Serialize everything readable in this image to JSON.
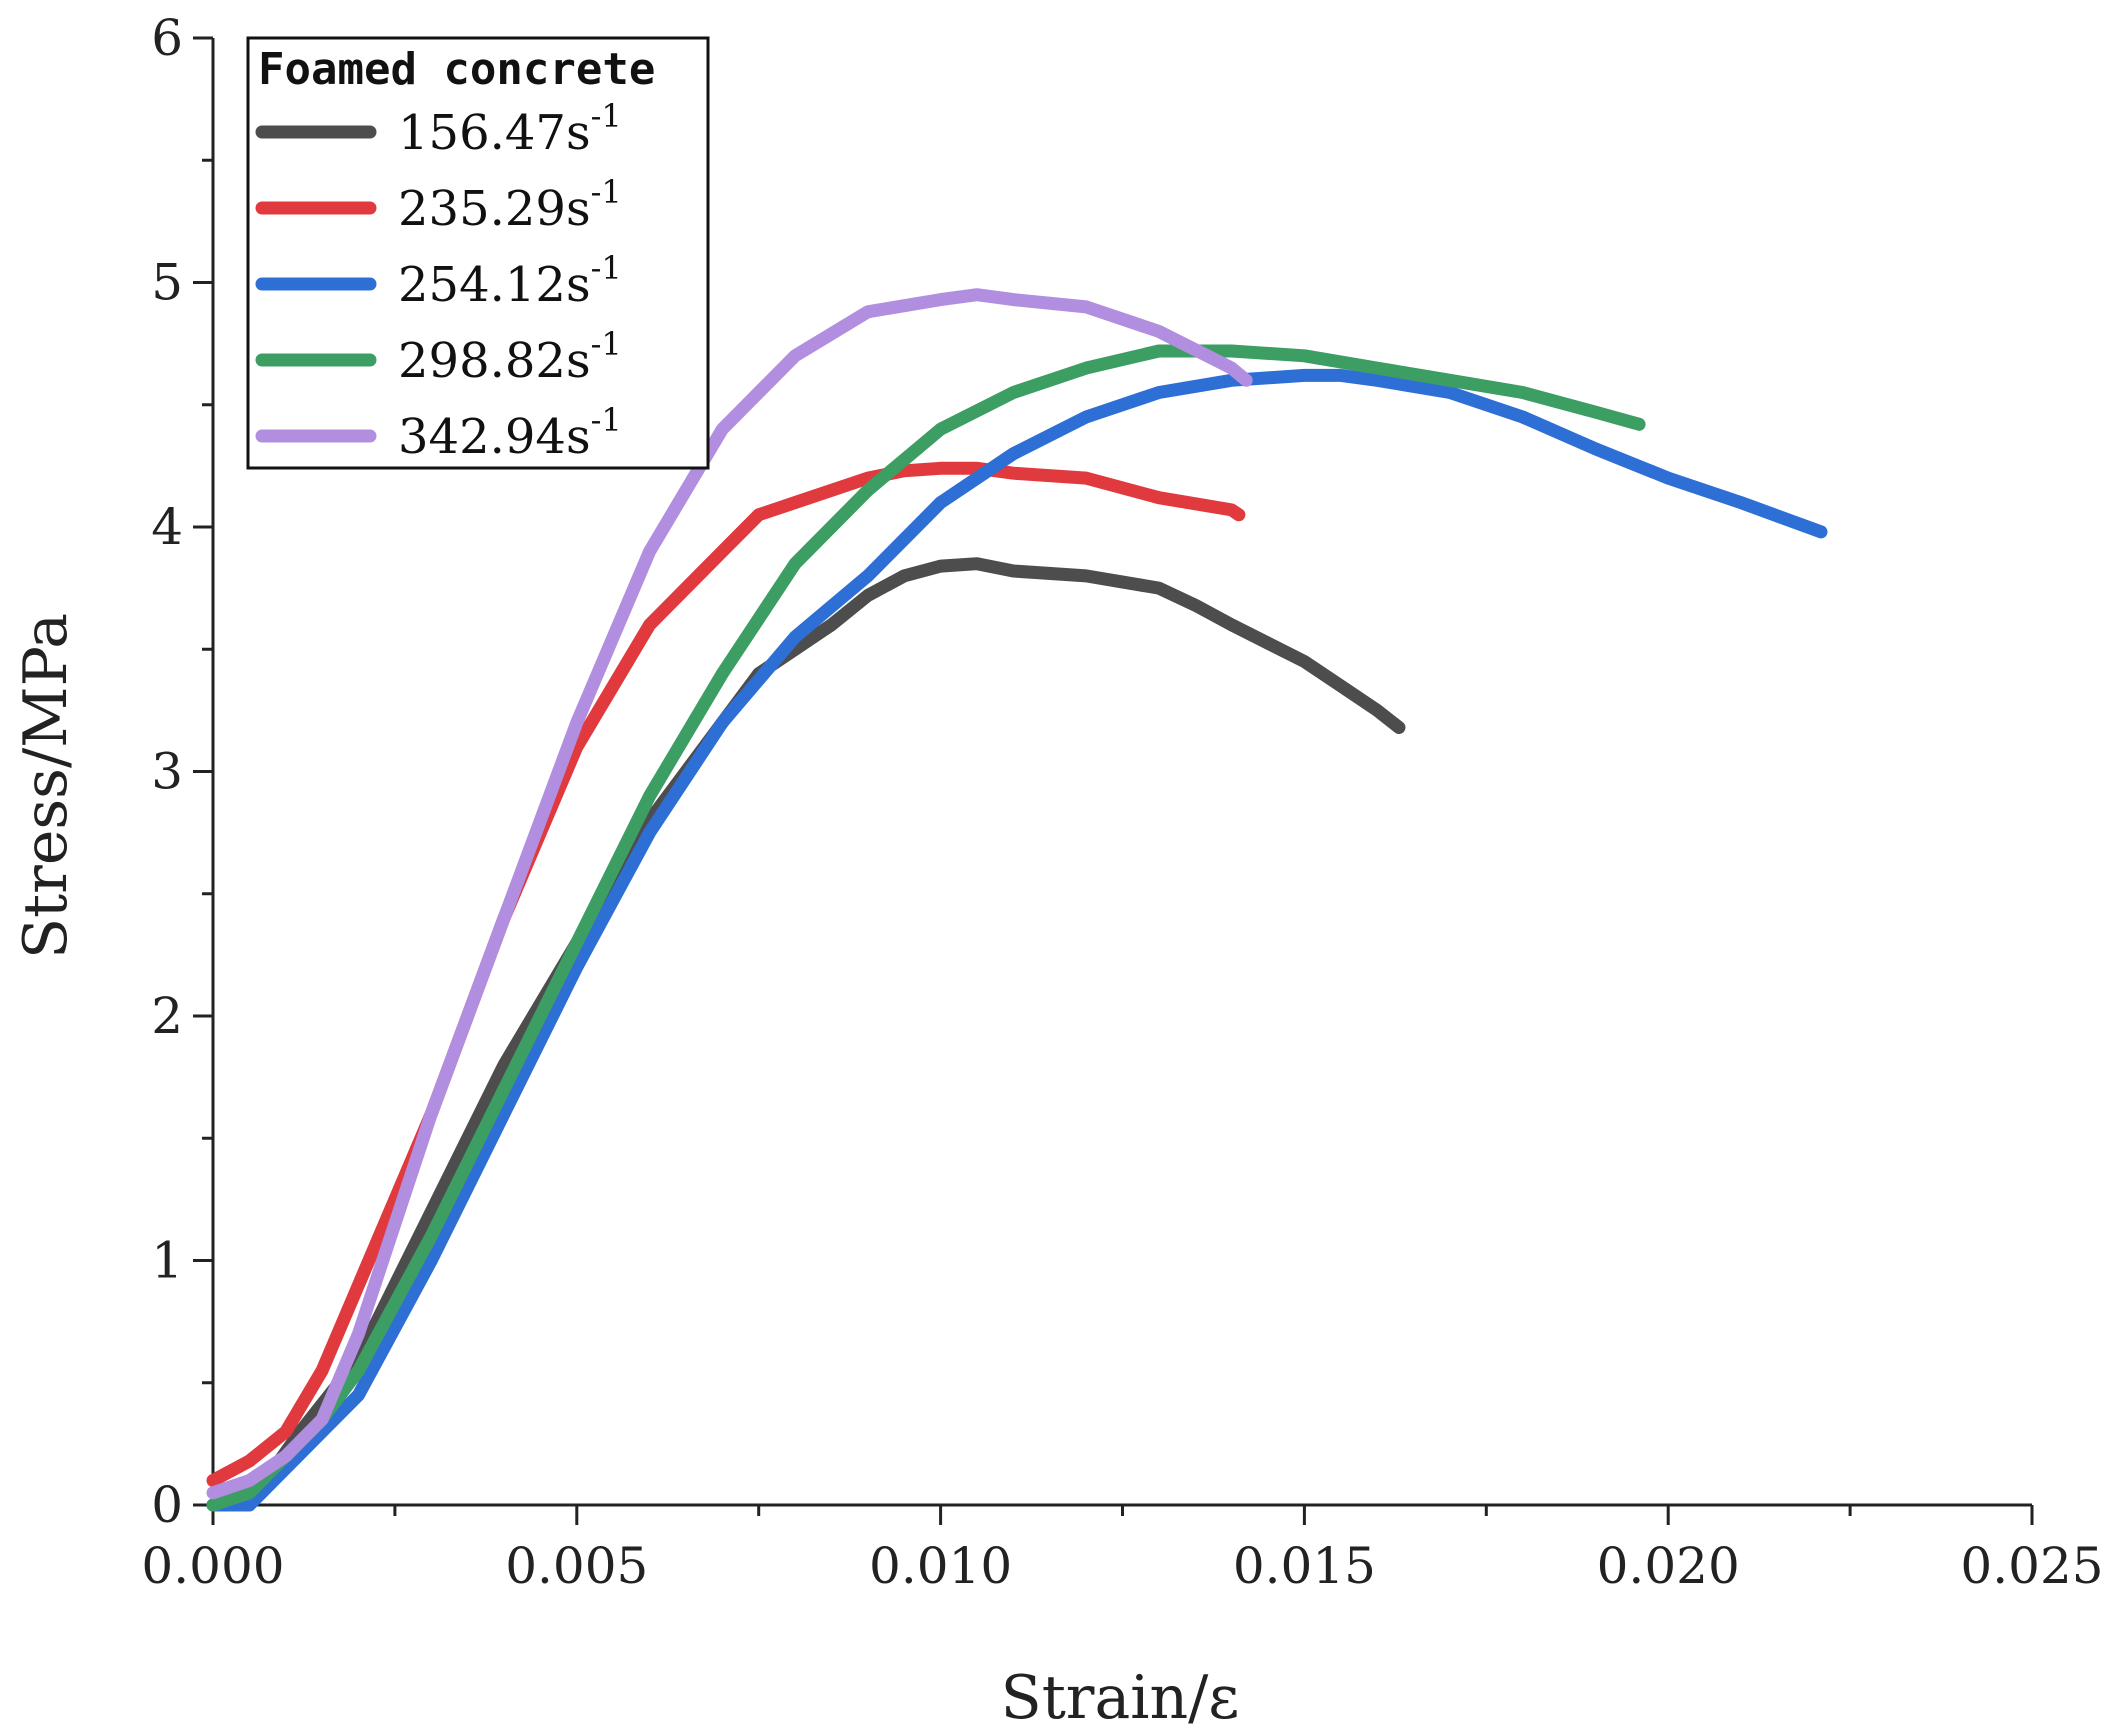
{
  "chart_data": {
    "type": "line",
    "xlabel": "Strain/ε",
    "ylabel": "Stress/MPa",
    "xlim": [
      0,
      0.025
    ],
    "ylim": [
      0,
      6
    ],
    "xticks": [
      "0.000",
      "0.005",
      "0.010",
      "0.015",
      "0.020",
      "0.025"
    ],
    "yticks": [
      "0",
      "1",
      "2",
      "3",
      "4",
      "5",
      "6"
    ],
    "grid": false,
    "legend": {
      "title": "Foamed concrete",
      "position": "top-left"
    },
    "series": [
      {
        "name": "156.47s-1",
        "label_main": "156.47s",
        "label_sup": "-1",
        "color": "#4d4d4d",
        "x": [
          0.0,
          0.0006,
          0.0012,
          0.002,
          0.003,
          0.004,
          0.005,
          0.006,
          0.007,
          0.0075,
          0.008,
          0.0085,
          0.009,
          0.0095,
          0.01,
          0.0105,
          0.011,
          0.012,
          0.013,
          0.0135,
          0.014,
          0.015,
          0.0155,
          0.016,
          0.0163
        ],
        "y": [
          0.0,
          0.05,
          0.3,
          0.6,
          1.2,
          1.8,
          2.3,
          2.8,
          3.2,
          3.4,
          3.5,
          3.6,
          3.72,
          3.8,
          3.84,
          3.85,
          3.82,
          3.8,
          3.75,
          3.68,
          3.6,
          3.45,
          3.35,
          3.25,
          3.18
        ]
      },
      {
        "name": "235.29s-1",
        "label_main": "235.29s",
        "label_sup": "-1",
        "color": "#e0393e",
        "x": [
          0.0,
          0.0005,
          0.001,
          0.0015,
          0.002,
          0.003,
          0.004,
          0.005,
          0.006,
          0.007,
          0.0075,
          0.008,
          0.009,
          0.0095,
          0.01,
          0.0105,
          0.011,
          0.012,
          0.013,
          0.014,
          0.0141
        ],
        "y": [
          0.1,
          0.18,
          0.3,
          0.55,
          0.9,
          1.6,
          2.4,
          3.1,
          3.6,
          3.9,
          4.05,
          4.1,
          4.2,
          4.23,
          4.24,
          4.24,
          4.22,
          4.2,
          4.12,
          4.07,
          4.05
        ]
      },
      {
        "name": "254.12s-1",
        "label_main": "254.12s",
        "label_sup": "-1",
        "color": "#2e6fd6",
        "x": [
          0.0,
          0.0005,
          0.001,
          0.0015,
          0.002,
          0.003,
          0.004,
          0.005,
          0.006,
          0.007,
          0.008,
          0.009,
          0.01,
          0.011,
          0.012,
          0.013,
          0.014,
          0.015,
          0.0155,
          0.016,
          0.017,
          0.018,
          0.019,
          0.02,
          0.021,
          0.0221
        ],
        "y": [
          0.0,
          0.0,
          0.15,
          0.3,
          0.45,
          1.0,
          1.6,
          2.2,
          2.75,
          3.2,
          3.55,
          3.8,
          4.1,
          4.3,
          4.45,
          4.55,
          4.6,
          4.62,
          4.62,
          4.6,
          4.55,
          4.45,
          4.32,
          4.2,
          4.1,
          3.98
        ]
      },
      {
        "name": "298.82s-1",
        "label_main": "298.82s",
        "label_sup": "-1",
        "color": "#3c9e63",
        "x": [
          0.0,
          0.0005,
          0.001,
          0.0015,
          0.002,
          0.003,
          0.004,
          0.005,
          0.006,
          0.007,
          0.008,
          0.009,
          0.01,
          0.011,
          0.012,
          0.013,
          0.014,
          0.015,
          0.016,
          0.017,
          0.018,
          0.019,
          0.0196
        ],
        "y": [
          0.0,
          0.05,
          0.2,
          0.35,
          0.55,
          1.1,
          1.7,
          2.3,
          2.9,
          3.4,
          3.85,
          4.15,
          4.4,
          4.55,
          4.65,
          4.72,
          4.72,
          4.7,
          4.65,
          4.6,
          4.55,
          4.47,
          4.42
        ]
      },
      {
        "name": "342.94s-1",
        "label_main": "342.94s",
        "label_sup": "-1",
        "color": "#b18ee0",
        "x": [
          0.0,
          0.0005,
          0.001,
          0.0015,
          0.002,
          0.003,
          0.004,
          0.005,
          0.006,
          0.007,
          0.008,
          0.009,
          0.01,
          0.0105,
          0.011,
          0.012,
          0.013,
          0.014,
          0.0142
        ],
        "y": [
          0.05,
          0.1,
          0.2,
          0.35,
          0.7,
          1.6,
          2.4,
          3.2,
          3.9,
          4.4,
          4.7,
          4.88,
          4.93,
          4.95,
          4.93,
          4.9,
          4.8,
          4.65,
          4.6
        ]
      }
    ]
  }
}
